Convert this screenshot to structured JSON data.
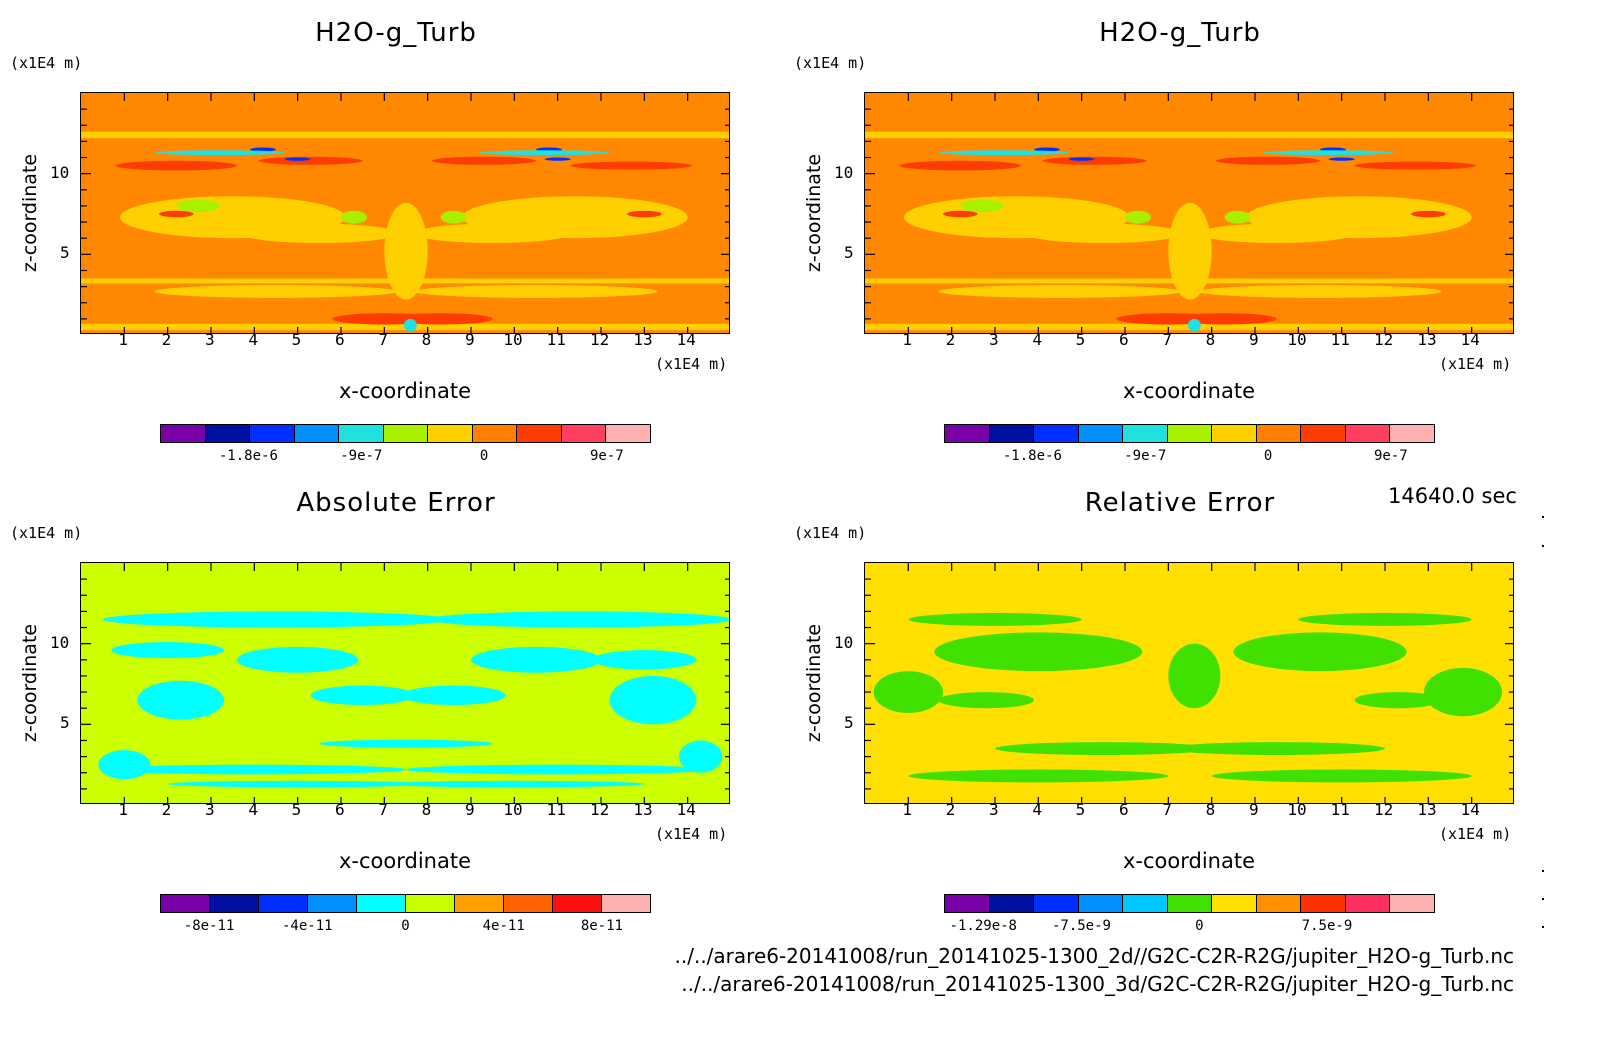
{
  "chart_data": [
    {
      "type": "heatmap",
      "title": "H2O-g_Turb",
      "xlabel": "x-coordinate",
      "ylabel": "z-coordinate",
      "x_unit": "(x1E4 m)",
      "y_unit": "(x1E4 m)",
      "xlim": [
        0,
        15
      ],
      "ylim": [
        0,
        15
      ],
      "xticks": [
        "1",
        "2",
        "3",
        "4",
        "5",
        "6",
        "7",
        "8",
        "9",
        "10",
        "11",
        "12",
        "13",
        "14"
      ],
      "yticks": [
        "5",
        "10"
      ],
      "colorbar": {
        "colors": [
          "#7a00a8",
          "#0010a0",
          "#0030ff",
          "#0090ff",
          "#20e0e0",
          "#a8f000",
          "#ffd000",
          "#ff8000",
          "#ff3c00",
          "#ff4060",
          "#ffb0b0"
        ],
        "tick_labels": [
          "-1.8e-6",
          "-9e-7",
          "0",
          "9e-7"
        ]
      },
      "background_color": "#ff8800"
    },
    {
      "type": "heatmap",
      "title": "H2O-g_Turb",
      "xlabel": "x-coordinate",
      "ylabel": "z-coordinate",
      "x_unit": "(x1E4 m)",
      "y_unit": "(x1E4 m)",
      "xlim": [
        0,
        15
      ],
      "ylim": [
        0,
        15
      ],
      "xticks": [
        "1",
        "2",
        "3",
        "4",
        "5",
        "6",
        "7",
        "8",
        "9",
        "10",
        "11",
        "12",
        "13",
        "14"
      ],
      "yticks": [
        "5",
        "10"
      ],
      "colorbar": {
        "colors": [
          "#7a00a8",
          "#0010a0",
          "#0030ff",
          "#0090ff",
          "#20e0e0",
          "#a8f000",
          "#ffd000",
          "#ff8000",
          "#ff3c00",
          "#ff4060",
          "#ffb0b0"
        ],
        "tick_labels": [
          "-1.8e-6",
          "-9e-7",
          "0",
          "9e-7"
        ]
      },
      "background_color": "#ff8800"
    },
    {
      "type": "heatmap",
      "title": "Absolute Error",
      "xlabel": "x-coordinate",
      "ylabel": "z-coordinate",
      "x_unit": "(x1E4 m)",
      "y_unit": "(x1E4 m)",
      "xlim": [
        0,
        15
      ],
      "ylim": [
        0,
        15
      ],
      "xticks": [
        "1",
        "2",
        "3",
        "4",
        "5",
        "6",
        "7",
        "8",
        "9",
        "10",
        "11",
        "12",
        "13",
        "14"
      ],
      "yticks": [
        "5",
        "10"
      ],
      "colorbar": {
        "colors": [
          "#7a00a8",
          "#0010a0",
          "#0030ff",
          "#0090ff",
          "#00ffff",
          "#c8ff00",
          "#ffa000",
          "#ff6000",
          "#ff1010",
          "#ffb0b0"
        ],
        "tick_labels": [
          "-8e-11",
          "-4e-11",
          "0",
          "4e-11",
          "8e-11"
        ]
      },
      "background_color": "#ccff00"
    },
    {
      "type": "heatmap",
      "title": "Relative Error",
      "xlabel": "x-coordinate",
      "ylabel": "z-coordinate",
      "x_unit": "(x1E4 m)",
      "y_unit": "(x1E4 m)",
      "xlim": [
        0,
        15
      ],
      "ylim": [
        0,
        15
      ],
      "xticks": [
        "1",
        "2",
        "3",
        "4",
        "5",
        "6",
        "7",
        "8",
        "9",
        "10",
        "11",
        "12",
        "13",
        "14"
      ],
      "yticks": [
        "5",
        "10"
      ],
      "colorbar": {
        "colors": [
          "#7a00a8",
          "#0010a0",
          "#0030ff",
          "#0090ff",
          "#00c8ff",
          "#40e000",
          "#ffe000",
          "#ff9000",
          "#ff3000",
          "#ff3060",
          "#ffb0b0"
        ],
        "tick_labels": [
          "-1.29e-8",
          "-7.5e-9",
          "0",
          "7.5e-9"
        ]
      },
      "background_color": "#ffe000"
    }
  ],
  "time_label": "14640.0 sec",
  "source_files": [
    "../../arare6-20141008/run_20141025-1300_2d//G2C-C2R-R2G/jupiter_H2O-g_Turb.nc",
    "../../arare6-20141008/run_20141025-1300_3d/G2C-C2R-R2G/jupiter_H2O-g_Turb.nc"
  ]
}
